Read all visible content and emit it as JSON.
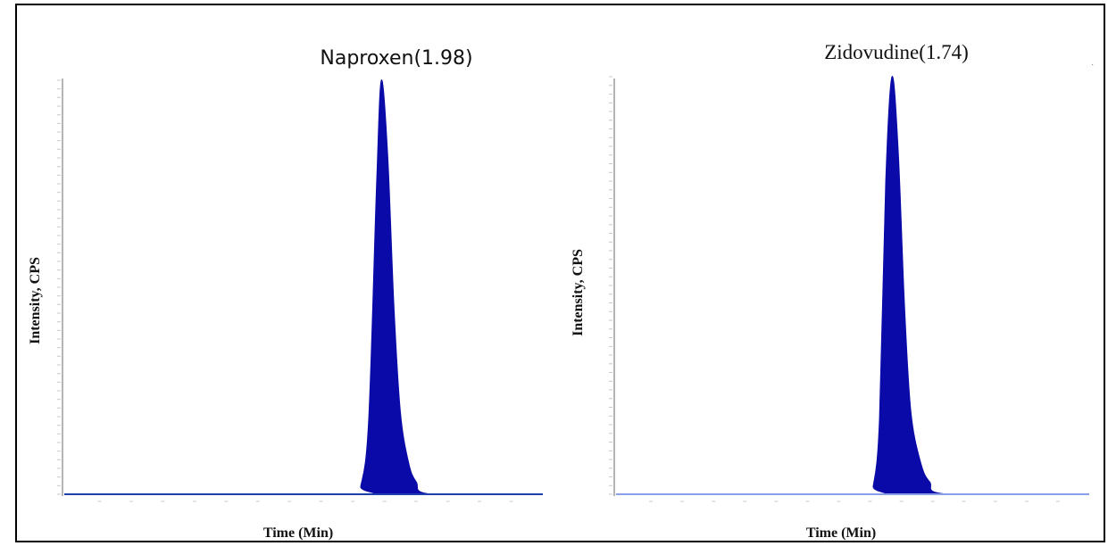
{
  "chart_data": [
    {
      "type": "area",
      "title": "Naproxen(1.98)",
      "xlabel": "Time (Min)",
      "ylabel": "Intensity, CPS",
      "colors": {
        "fill": "#0a0aa8",
        "baseline": "#1f3fb0"
      },
      "grid": false,
      "series": [
        {
          "x": [
            0.0,
            1.8,
            1.85,
            1.9,
            1.95,
            1.98,
            2.02,
            2.06,
            2.1,
            2.15,
            2.2,
            2.3,
            3.0
          ],
          "y": [
            0,
            0,
            2,
            18,
            75,
            100,
            82,
            45,
            20,
            8,
            3,
            0,
            0
          ]
        }
      ]
    },
    {
      "type": "area",
      "title": "Zidovudine(1.74)",
      "xlabel": "Time (Min)",
      "ylabel": "Intensity, CPS",
      "colors": {
        "fill": "#0a0aa8",
        "baseline": "#8aa0e6"
      },
      "grid": false,
      "series": [
        {
          "x": [
            0.0,
            1.58,
            1.62,
            1.66,
            1.7,
            1.74,
            1.78,
            1.82,
            1.86,
            1.92,
            1.98,
            2.1,
            3.0
          ],
          "y": [
            0,
            0,
            2,
            18,
            75,
            100,
            82,
            45,
            20,
            8,
            3,
            0,
            0
          ]
        }
      ]
    }
  ]
}
